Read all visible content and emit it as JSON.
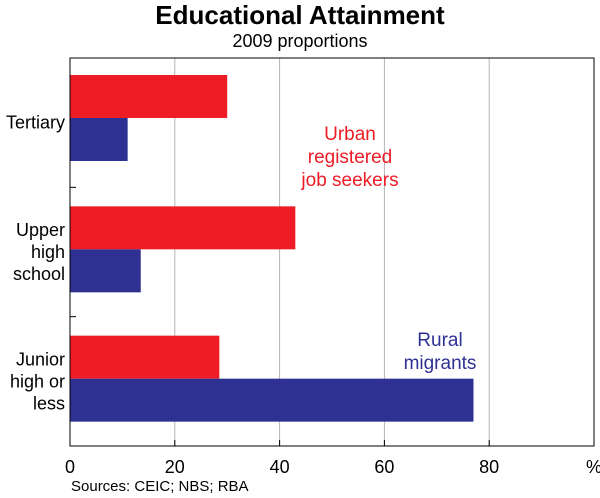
{
  "title": "Educational Attainment",
  "subtitle": "2009 proportions",
  "source": "Sources: CEIC; NBS; RBA",
  "colors": {
    "urban": "#ee1c25",
    "rural": "#2e3192",
    "grid": "#b3b3b3"
  },
  "chart_data": {
    "type": "bar",
    "orientation": "horizontal",
    "title": "Educational Attainment",
    "subtitle": "2009 proportions",
    "unit": "%",
    "categories": [
      [
        "Tertiary"
      ],
      [
        "Upper",
        "high",
        "school"
      ],
      [
        "Junior",
        "high or",
        "less"
      ]
    ],
    "series": [
      {
        "name": "Urban registered job seekers",
        "label_lines": [
          "Urban",
          "registered",
          "job seekers"
        ],
        "values": [
          30,
          43,
          28.5
        ]
      },
      {
        "name": "Rural migrants",
        "label_lines": [
          "Rural",
          "migrants"
        ],
        "values": [
          11,
          13.5,
          77
        ]
      }
    ],
    "xlim": [
      0,
      100
    ],
    "xticks": [
      "0",
      "20",
      "40",
      "60",
      "80",
      "%"
    ],
    "grid": true
  }
}
